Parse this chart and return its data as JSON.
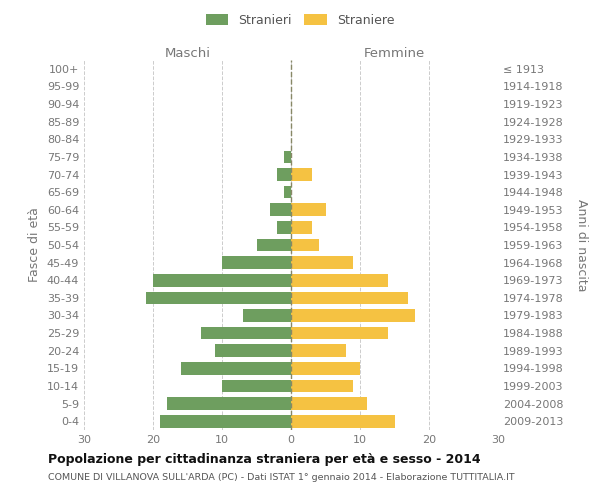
{
  "age_groups": [
    "100+",
    "95-99",
    "90-94",
    "85-89",
    "80-84",
    "75-79",
    "70-74",
    "65-69",
    "60-64",
    "55-59",
    "50-54",
    "45-49",
    "40-44",
    "35-39",
    "30-34",
    "25-29",
    "20-24",
    "15-19",
    "10-14",
    "5-9",
    "0-4"
  ],
  "birth_years": [
    "≤ 1913",
    "1914-1918",
    "1919-1923",
    "1924-1928",
    "1929-1933",
    "1934-1938",
    "1939-1943",
    "1944-1948",
    "1949-1953",
    "1954-1958",
    "1959-1963",
    "1964-1968",
    "1969-1973",
    "1974-1978",
    "1979-1983",
    "1984-1988",
    "1989-1993",
    "1994-1998",
    "1999-2003",
    "2004-2008",
    "2009-2013"
  ],
  "maschi": [
    0,
    0,
    0,
    0,
    0,
    1,
    2,
    1,
    3,
    2,
    5,
    10,
    20,
    21,
    7,
    13,
    11,
    16,
    10,
    18,
    19
  ],
  "femmine": [
    0,
    0,
    0,
    0,
    0,
    0,
    3,
    0,
    5,
    3,
    4,
    9,
    14,
    17,
    18,
    14,
    8,
    10,
    9,
    11,
    15
  ],
  "color_maschi": "#6e9e5f",
  "color_femmine": "#f5c242",
  "title": "Popolazione per cittadinanza straniera per età e sesso - 2014",
  "subtitle": "COMUNE DI VILLANOVA SULL'ARDA (PC) - Dati ISTAT 1° gennaio 2014 - Elaborazione TUTTITALIA.IT",
  "ylabel_left": "Fasce di età",
  "ylabel_right": "Anni di nascita",
  "xlabel_maschi": "Maschi",
  "xlabel_femmine": "Femmine",
  "xlim": 30,
  "legend_stranieri": "Stranieri",
  "legend_straniere": "Straniere",
  "background_color": "#ffffff",
  "grid_color": "#cccccc"
}
